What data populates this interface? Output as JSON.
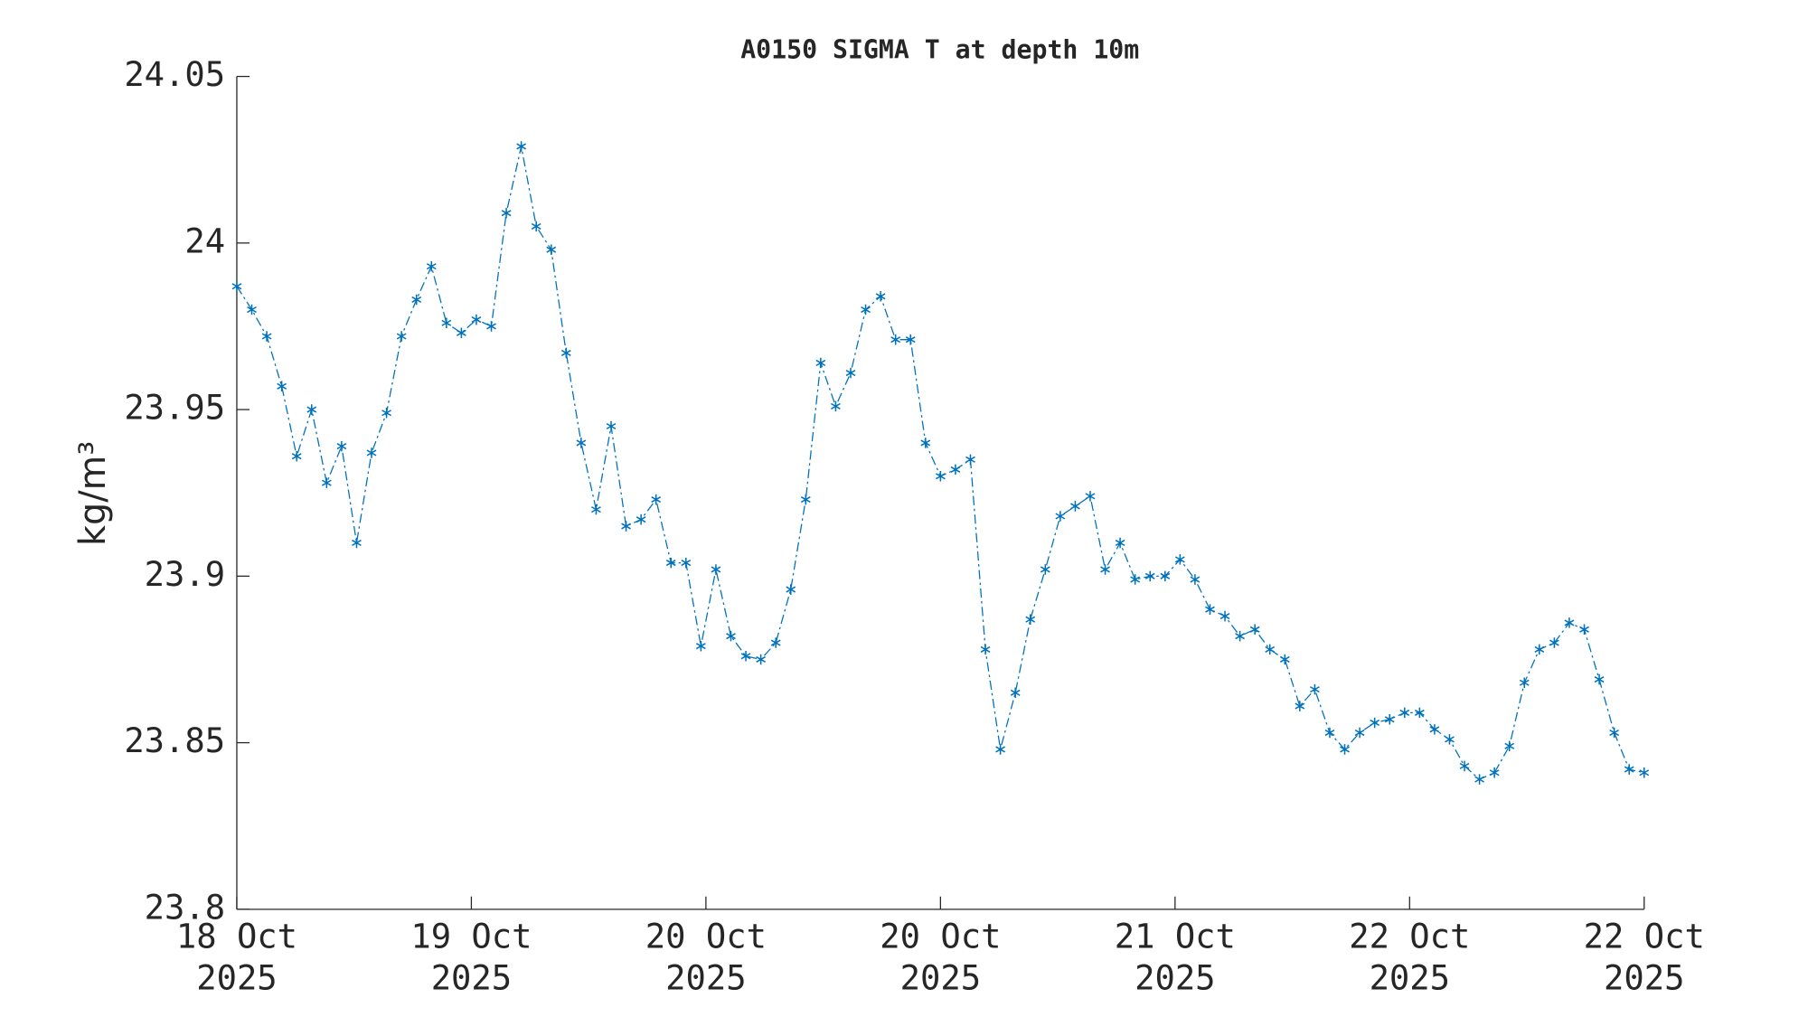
{
  "chart_data": {
    "type": "line",
    "title": "A0150 SIGMA T at depth 10m",
    "ylabel": "kg/m³",
    "xtick_labels": [
      [
        "18 Oct",
        "2025"
      ],
      [
        "19 Oct",
        "2025"
      ],
      [
        "20 Oct",
        "2025"
      ],
      [
        "20 Oct",
        "2025"
      ],
      [
        "21 Oct",
        "2025"
      ],
      [
        "22 Oct",
        "2025"
      ],
      [
        "22 Oct",
        "2025"
      ]
    ],
    "ylim": [
      23.8,
      24.05
    ],
    "yticks": [
      23.8,
      23.85,
      23.9,
      23.95,
      24,
      24.05
    ],
    "grid": false,
    "series": [
      {
        "color": "#0072bd",
        "values": [
          23.987,
          23.98,
          23.972,
          23.957,
          23.936,
          23.95,
          23.928,
          23.939,
          23.91,
          23.937,
          23.949,
          23.972,
          23.983,
          23.993,
          23.976,
          23.973,
          23.977,
          23.975,
          24.009,
          24.029,
          24.005,
          23.998,
          23.967,
          23.94,
          23.92,
          23.945,
          23.915,
          23.917,
          23.923,
          23.904,
          23.904,
          23.879,
          23.902,
          23.882,
          23.876,
          23.875,
          23.88,
          23.896,
          23.923,
          23.964,
          23.951,
          23.961,
          23.98,
          23.984,
          23.971,
          23.971,
          23.94,
          23.93,
          23.932,
          23.935,
          23.878,
          23.848,
          23.865,
          23.887,
          23.902,
          23.918,
          23.921,
          23.924,
          23.902,
          23.91,
          23.899,
          23.9,
          23.9,
          23.905,
          23.899,
          23.89,
          23.888,
          23.882,
          23.884,
          23.878,
          23.875,
          23.861,
          23.866,
          23.853,
          23.848,
          23.853,
          23.856,
          23.857,
          23.859,
          23.859,
          23.854,
          23.851,
          23.843,
          23.839,
          23.841,
          23.849,
          23.868,
          23.878,
          23.88,
          23.886,
          23.884,
          23.869,
          23.853,
          23.842,
          23.841
        ]
      }
    ]
  }
}
